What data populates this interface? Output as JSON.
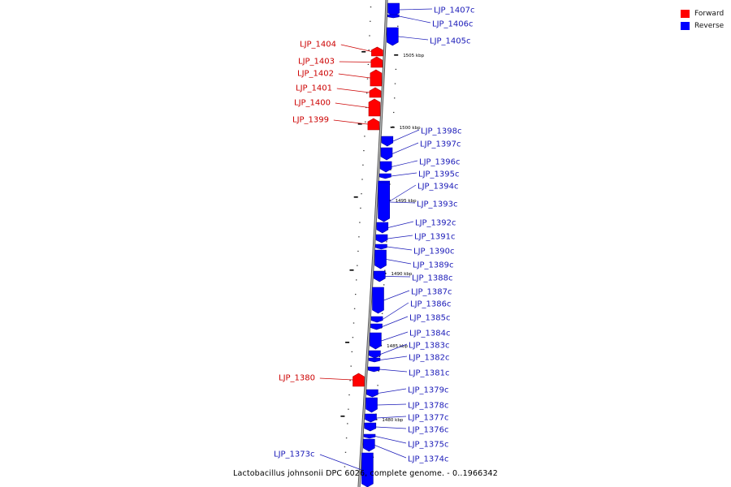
{
  "colors": {
    "forward": "#ff0000",
    "reverse": "#0000ff",
    "backbone": "#9a9a9a",
    "label_forward": "#cc0000",
    "label_reverse": "#1a1ab8"
  },
  "legend": [
    {
      "label": "Forward",
      "color": "#ff0000"
    },
    {
      "label": "Reverse",
      "color": "#0000ff"
    }
  ],
  "caption": "Lactobacillus johnsonii DPC 6026, complete genome. - 0..1966342",
  "ticks": [
    {
      "label": "1505 kbp",
      "pos": 1505
    },
    {
      "label": "1500 kbp",
      "pos": 1500
    },
    {
      "label": "1495 kbp",
      "pos": 1495
    },
    {
      "label": "1490 kbp",
      "pos": 1490
    },
    {
      "label": "1485 kbp",
      "pos": 1485
    },
    {
      "label": "1480 kbp",
      "pos": 1480
    }
  ],
  "genes": [
    {
      "label": "LJP_1407c",
      "strand": "reverse"
    },
    {
      "label": "LJP_1406c",
      "strand": "reverse"
    },
    {
      "label": "LJP_1405c",
      "strand": "reverse"
    },
    {
      "label": "LJP_1404",
      "strand": "forward"
    },
    {
      "label": "LJP_1403",
      "strand": "forward"
    },
    {
      "label": "LJP_1402",
      "strand": "forward"
    },
    {
      "label": "LJP_1401",
      "strand": "forward"
    },
    {
      "label": "LJP_1400",
      "strand": "forward"
    },
    {
      "label": "LJP_1399",
      "strand": "forward"
    },
    {
      "label": "LJP_1398c",
      "strand": "reverse"
    },
    {
      "label": "LJP_1397c",
      "strand": "reverse"
    },
    {
      "label": "LJP_1396c",
      "strand": "reverse"
    },
    {
      "label": "LJP_1395c",
      "strand": "reverse"
    },
    {
      "label": "LJP_1394c",
      "strand": "reverse"
    },
    {
      "label": "LJP_1393c",
      "strand": "reverse"
    },
    {
      "label": "LJP_1392c",
      "strand": "reverse"
    },
    {
      "label": "LJP_1391c",
      "strand": "reverse"
    },
    {
      "label": "LJP_1390c",
      "strand": "reverse"
    },
    {
      "label": "LJP_1389c",
      "strand": "reverse"
    },
    {
      "label": "LJP_1388c",
      "strand": "reverse"
    },
    {
      "label": "LJP_1387c",
      "strand": "reverse"
    },
    {
      "label": "LJP_1386c",
      "strand": "reverse"
    },
    {
      "label": "LJP_1385c",
      "strand": "reverse"
    },
    {
      "label": "LJP_1384c",
      "strand": "reverse"
    },
    {
      "label": "LJP_1383c",
      "strand": "reverse"
    },
    {
      "label": "LJP_1382c",
      "strand": "reverse"
    },
    {
      "label": "LJP_1381c",
      "strand": "reverse"
    },
    {
      "label": "LJP_1380",
      "strand": "forward"
    },
    {
      "label": "LJP_1379c",
      "strand": "reverse"
    },
    {
      "label": "LJP_1378c",
      "strand": "reverse"
    },
    {
      "label": "LJP_1377c",
      "strand": "reverse"
    },
    {
      "label": "LJP_1376c",
      "strand": "reverse"
    },
    {
      "label": "LJP_1375c",
      "strand": "reverse"
    },
    {
      "label": "LJP_1374c",
      "strand": "reverse"
    },
    {
      "label": "LJP_1373c",
      "strand": "reverse"
    }
  ]
}
